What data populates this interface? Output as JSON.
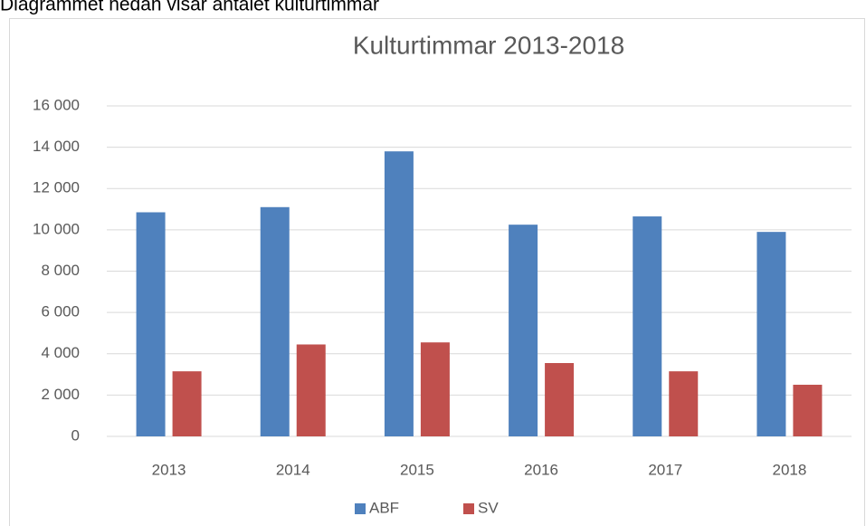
{
  "caption": "Diagrammet nedan visar antalet kulturtimmar",
  "chart_data": {
    "type": "bar",
    "title": "Kulturtimmar 2013-2018",
    "categories": [
      "2013",
      "2014",
      "2015",
      "2016",
      "2017",
      "2018"
    ],
    "series": [
      {
        "name": "ABF",
        "color": "#4f81bd",
        "values": [
          10850,
          11100,
          13800,
          10250,
          10650,
          9900
        ]
      },
      {
        "name": "SV",
        "color": "#c0504d",
        "values": [
          3150,
          4450,
          4550,
          3550,
          3150,
          2500
        ]
      }
    ],
    "ylim": [
      0,
      16000
    ],
    "yticks": [
      0,
      {
        "value": 2000,
        "label": "2 000"
      },
      {
        "value": 4000,
        "label": "4 000"
      },
      {
        "value": 6000,
        "label": "6 000"
      },
      {
        "value": 8000,
        "label": "8 000"
      },
      {
        "value": 10000,
        "label": "10 000"
      },
      {
        "value": 12000,
        "label": "12 000"
      },
      {
        "value": 14000,
        "label": "14 000"
      },
      {
        "value": 16000,
        "label": "16 000"
      }
    ],
    "grid": true,
    "legend": "bottom"
  }
}
